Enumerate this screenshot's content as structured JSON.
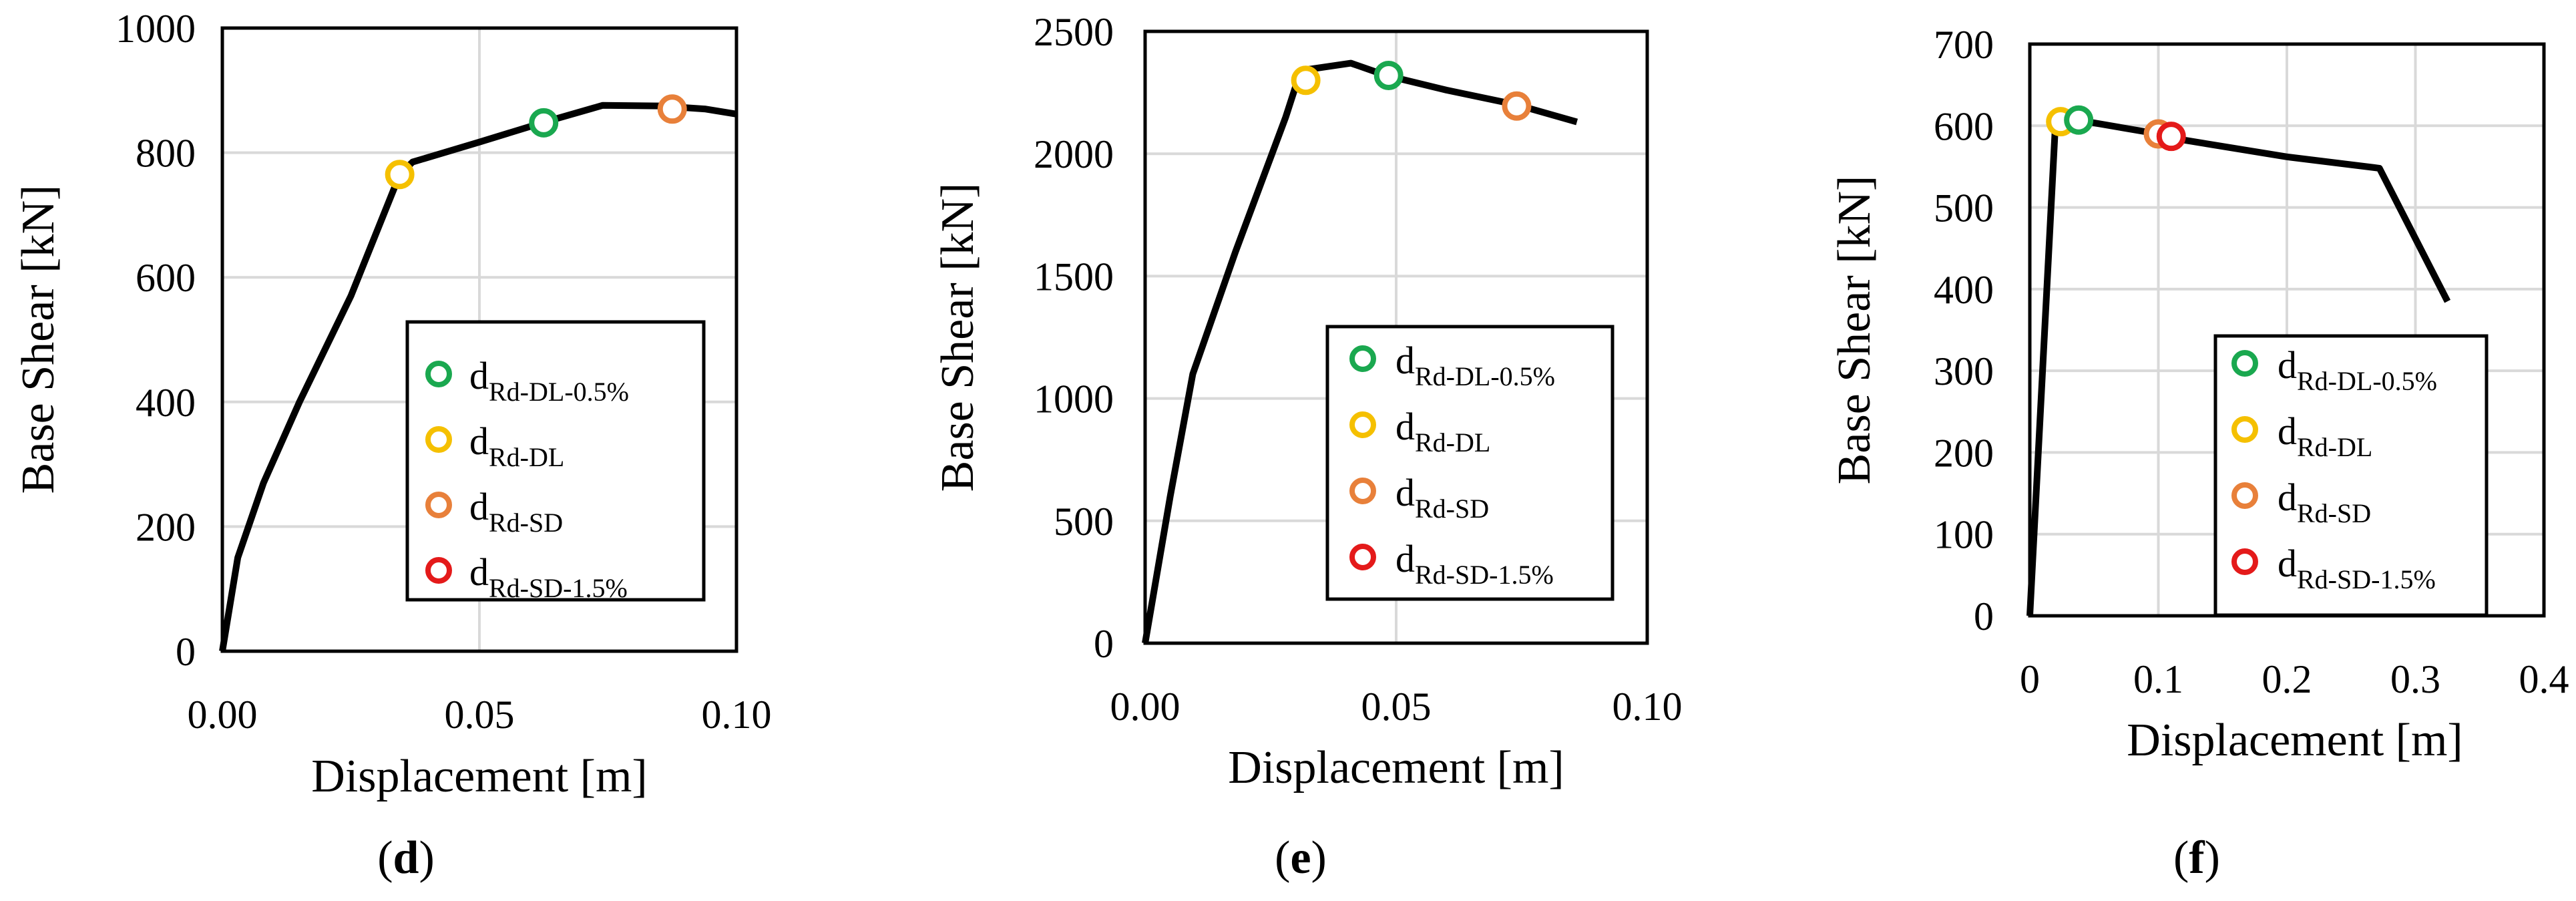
{
  "chart_data": [
    {
      "type": "line",
      "panel_label": "d",
      "xlabel": "Displacement [m]",
      "ylabel": "Base Shear [kN]",
      "xlim": [
        0,
        0.1
      ],
      "ylim": [
        0,
        1000
      ],
      "xticks": [
        0,
        0.05,
        0.1
      ],
      "xtick_labels": [
        "0.00",
        "0.05",
        "0.10"
      ],
      "yticks": [
        0,
        200,
        400,
        600,
        800,
        1000
      ],
      "ytick_labels": [
        "0",
        "200",
        "400",
        "600",
        "800",
        "1000"
      ],
      "grid": true,
      "series": [
        {
          "name": "capacity curve",
          "x": [
            0,
            0.003,
            0.008,
            0.015,
            0.025,
            0.0345,
            0.037,
            0.05,
            0.063,
            0.074,
            0.085,
            0.094,
            0.1
          ],
          "y": [
            0,
            150,
            270,
            400,
            570,
            765,
            785,
            817,
            850,
            876,
            875,
            870,
            862
          ]
        }
      ],
      "markers": [
        {
          "key": "dl05",
          "x": 0.0625,
          "y": 848
        },
        {
          "key": "dl",
          "x": 0.0345,
          "y": 765
        },
        {
          "key": "sd",
          "x": 0.0875,
          "y": 870
        }
      ],
      "legend_position": "center-right"
    },
    {
      "type": "line",
      "panel_label": "e",
      "xlabel": "Displacement [m]",
      "ylabel": "Base Shear [kN]",
      "xlim": [
        0,
        0.1
      ],
      "ylim": [
        0,
        2500
      ],
      "xticks": [
        0,
        0.05,
        0.1
      ],
      "xtick_labels": [
        "0.00",
        "0.05",
        "0.10"
      ],
      "yticks": [
        0,
        500,
        1000,
        1500,
        2000,
        2500
      ],
      "ytick_labels": [
        "0",
        "500",
        "1000",
        "1500",
        "2000",
        "2500"
      ],
      "grid": true,
      "series": [
        {
          "name": "capacity curve",
          "x": [
            0,
            0.005,
            0.0095,
            0.018,
            0.028,
            0.031,
            0.041,
            0.048,
            0.06,
            0.074,
            0.086
          ],
          "y": [
            0,
            600,
            1100,
            1600,
            2150,
            2340,
            2370,
            2320,
            2260,
            2200,
            2130
          ]
        }
      ],
      "markers": [
        {
          "key": "dl",
          "x": 0.032,
          "y": 2300
        },
        {
          "key": "dl05",
          "x": 0.0485,
          "y": 2320
        },
        {
          "key": "sd",
          "x": 0.074,
          "y": 2195
        }
      ],
      "legend_position": "center-right"
    },
    {
      "type": "line",
      "panel_label": "f",
      "xlabel": "Displacement [m]",
      "ylabel": "Base Shear [kN]",
      "xlim": [
        0,
        0.4
      ],
      "ylim": [
        0,
        700
      ],
      "xticks": [
        0,
        0.1,
        0.2,
        0.3,
        0.4
      ],
      "xtick_labels": [
        "0",
        "0.1",
        "0.2",
        "0.3",
        "0.4"
      ],
      "yticks": [
        0,
        100,
        200,
        300,
        400,
        500,
        600,
        700
      ],
      "ytick_labels": [
        "0",
        "100",
        "200",
        "300",
        "400",
        "500",
        "600",
        "700"
      ],
      "grid": true,
      "series": [
        {
          "name": "capacity curve",
          "x": [
            0,
            0.02,
            0.037,
            0.1,
            0.11,
            0.2,
            0.272,
            0.325
          ],
          "y": [
            0,
            605,
            607,
            590,
            585,
            562,
            548,
            385
          ]
        }
      ],
      "markers": [
        {
          "key": "dl",
          "x": 0.024,
          "y": 605
        },
        {
          "key": "dl05",
          "x": 0.038,
          "y": 607
        },
        {
          "key": "sd",
          "x": 0.1,
          "y": 590
        },
        {
          "key": "sd15",
          "x": 0.11,
          "y": 587
        }
      ],
      "legend_position": "bottom-right"
    }
  ],
  "legend": {
    "items": [
      {
        "key": "dl05",
        "main": "d",
        "sub": "Rd-DL-0.5%",
        "color": "#1aa84f"
      },
      {
        "key": "dl",
        "main": "d",
        "sub": "Rd-DL",
        "color": "#f5c000"
      },
      {
        "key": "sd",
        "main": "d",
        "sub": "Rd-SD",
        "color": "#e8803a"
      },
      {
        "key": "sd15",
        "main": "d",
        "sub": "Rd-SD-1.5%",
        "color": "#e41a1a"
      }
    ]
  },
  "panel_labels": {
    "d": "(d)",
    "e": "(e)",
    "f": "(f)"
  }
}
